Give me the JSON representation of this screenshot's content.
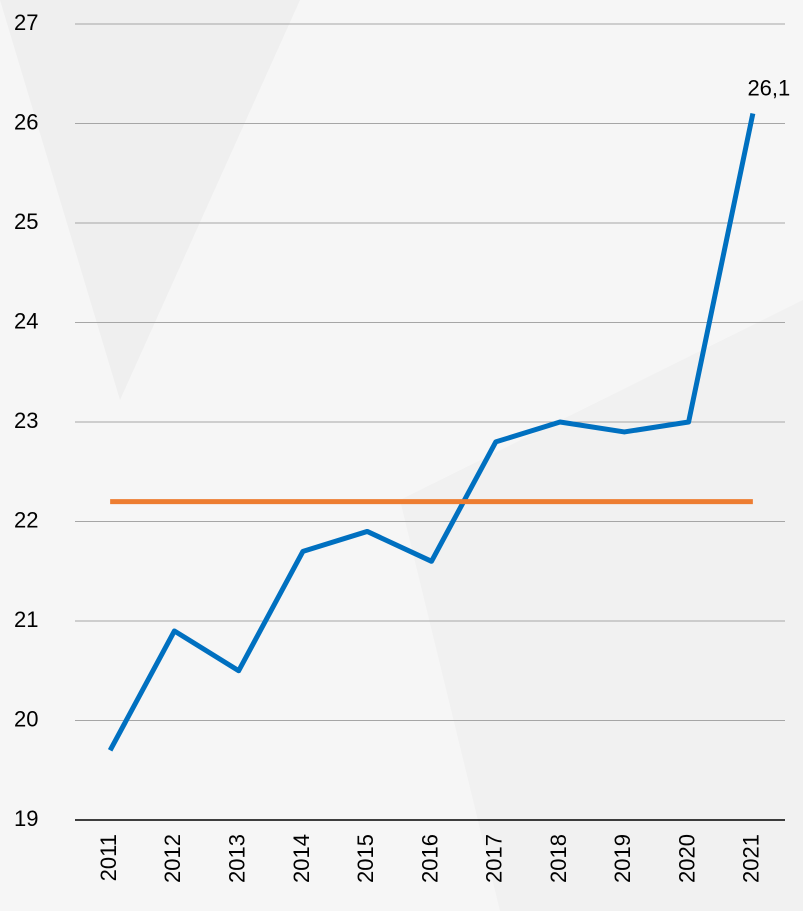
{
  "chart_data": {
    "type": "line",
    "categories": [
      "2011",
      "2012",
      "2013",
      "2014",
      "2015",
      "2016",
      "2017",
      "2018",
      "2019",
      "2020",
      "2021"
    ],
    "series": [
      {
        "color": "#0070c0",
        "values": [
          19.7,
          20.9,
          20.5,
          21.7,
          21.9,
          21.6,
          22.8,
          23.0,
          22.9,
          23.0,
          26.1
        ],
        "value_labels": [
          null,
          null,
          null,
          null,
          null,
          null,
          null,
          null,
          null,
          null,
          "26,1"
        ]
      },
      {
        "color": "#ed7d31",
        "values": [
          22.2,
          22.2,
          22.2,
          22.2,
          22.2,
          22.2,
          22.2,
          22.2,
          22.2,
          22.2,
          22.2
        ]
      }
    ],
    "ylim": [
      19,
      27
    ],
    "yticks": [
      19,
      20,
      21,
      22,
      23,
      24,
      25,
      26,
      27
    ],
    "grid": true
  }
}
